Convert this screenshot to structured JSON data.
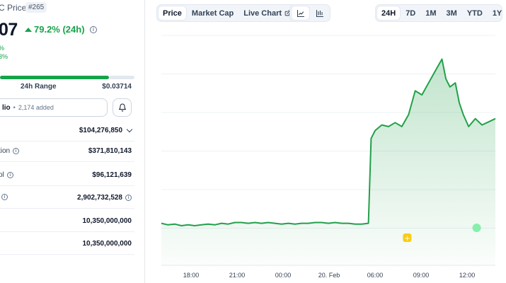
{
  "header": {
    "title": "C Price",
    "rank": "#265",
    "price": "07",
    "change": "79.2% (24h)",
    "sub_line_1": "%",
    "sub_line_2": "3%"
  },
  "range24h": {
    "label": "24h Range",
    "high": "$0.03714",
    "fill_fraction": 0.81
  },
  "portfolio": {
    "label": "lio",
    "added": "2,174 added"
  },
  "stats": [
    {
      "label": "",
      "value": "$104,276,850",
      "has_info": false,
      "has_chevron": true
    },
    {
      "label": "tion",
      "value": "$371,810,143",
      "has_info": true,
      "has_chevron": false
    },
    {
      "label": "ol",
      "value": "$96,121,639",
      "has_info": true,
      "has_chevron": false
    },
    {
      "label": "",
      "value": "2,902,732,528",
      "has_info": true,
      "has_chevron": false,
      "value_info": true
    },
    {
      "label": "",
      "value": "10,350,000,000",
      "has_info": false,
      "has_chevron": false
    },
    {
      "label": "",
      "value": "10,350,000,000",
      "has_info": false,
      "has_chevron": false
    }
  ],
  "toolbar": {
    "tabs": [
      "Price",
      "Market Cap",
      "Live Chart"
    ],
    "active_tab": "Price",
    "ranges": [
      "24H",
      "7D",
      "1M",
      "3M",
      "YTD",
      "1Y"
    ],
    "active_range": "24H"
  },
  "colors": {
    "up": "#16a34a",
    "line": "#22a04b"
  },
  "chart_data": {
    "type": "area",
    "x_ticks": [
      "18:00",
      "21:00",
      "00:00",
      "20. Feb",
      "06:00",
      "09:00",
      "12:00"
    ],
    "x": [
      0,
      0.5,
      1,
      1.5,
      2,
      2.5,
      3,
      3.5,
      4,
      4.5,
      5,
      5.5,
      6,
      6.5,
      7,
      7.5,
      8,
      8.5,
      9,
      9.5,
      10,
      10.5,
      11,
      11.5,
      12,
      12.5,
      13,
      13.5,
      14,
      14.5,
      15,
      15.5,
      15.7,
      16,
      16.5,
      17,
      17.5,
      18,
      18.5,
      19,
      19.5,
      20,
      20.5,
      21,
      21.3,
      21.6,
      22,
      22.3,
      22.6,
      23,
      23.5,
      24,
      24.5,
      25
    ],
    "y": [
      0.0168,
      0.0166,
      0.0167,
      0.0165,
      0.0166,
      0.0165,
      0.0166,
      0.0167,
      0.0166,
      0.0168,
      0.0167,
      0.0169,
      0.0169,
      0.0168,
      0.0169,
      0.0168,
      0.0169,
      0.0168,
      0.0167,
      0.0168,
      0.0167,
      0.0168,
      0.0168,
      0.0169,
      0.0169,
      0.0168,
      0.0169,
      0.0168,
      0.0168,
      0.0167,
      0.0167,
      0.0168,
      0.0275,
      0.0285,
      0.0292,
      0.029,
      0.0295,
      0.029,
      0.0305,
      0.0335,
      0.033,
      0.0345,
      0.036,
      0.0375,
      0.035,
      0.034,
      0.0345,
      0.032,
      0.0305,
      0.029,
      0.03,
      0.0292,
      0.0296,
      0.03
    ],
    "ylim": [
      0.0115,
      0.0405
    ],
    "x_range": [
      0,
      25
    ],
    "grid": true,
    "markers": [
      {
        "x": 18.4,
        "type": "star"
      },
      {
        "x": 23.6,
        "type": "badge"
      }
    ]
  }
}
